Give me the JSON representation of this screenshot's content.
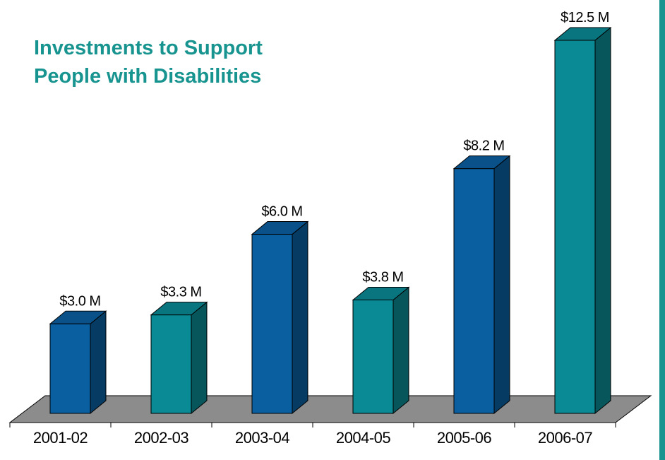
{
  "chart_data": {
    "type": "bar",
    "title": [
      "Investments to Support",
      "People with Disabilities"
    ],
    "categories": [
      "2001-02",
      "2002-03",
      "2003-04",
      "2004-05",
      "2005-06",
      "2006-07"
    ],
    "values": [
      3.0,
      3.3,
      6.0,
      3.8,
      8.2,
      12.5
    ],
    "data_labels": [
      "$3.0 M",
      "$3.3 M",
      "$6.0 M",
      "$3.8 M",
      "$8.2 M",
      "$12.5 M"
    ],
    "xlabel": "",
    "ylabel": "",
    "ylim": [
      0,
      12.5
    ],
    "grid": false,
    "legend": "none",
    "bar_colors": [
      "#0a5fa0",
      "#0a8a95",
      "#0a5fa0",
      "#0a8a95",
      "#0a5fa0",
      "#0a8a95"
    ],
    "floor_color": "#8c8c8c",
    "title_color": "#17948f"
  }
}
